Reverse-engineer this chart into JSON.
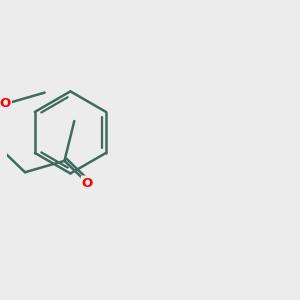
{
  "bg_color": "#ececec",
  "bond_color": "#3d6b5e",
  "heteroatom_color": "#ff0000",
  "line_width": 1.8,
  "scale": 0.42
}
